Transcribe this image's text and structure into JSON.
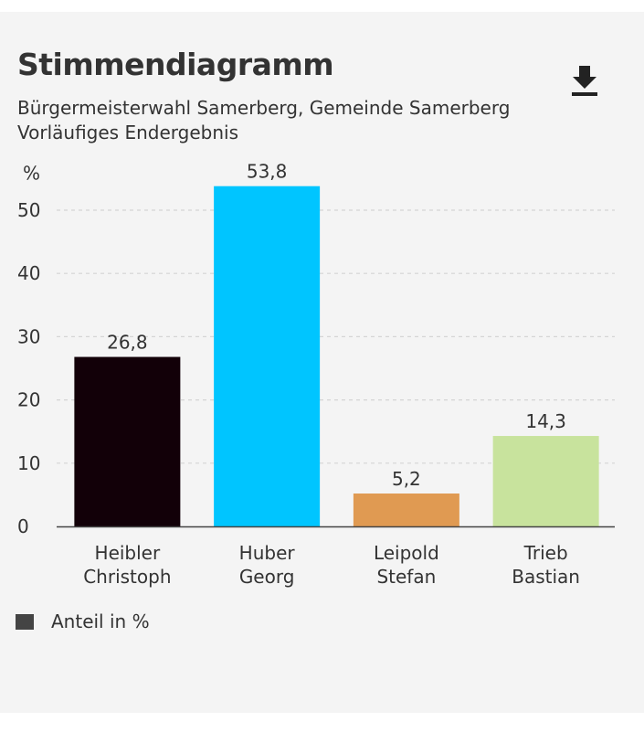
{
  "title": "Stimmendiagramm",
  "subtitle_lines": [
    "Bürgermeisterwahl Samerberg, Gemeinde Samerberg",
    "Vorläufiges Endergebnis"
  ],
  "download_icon": "download-icon",
  "chart_data": {
    "type": "bar",
    "y_unit_label": "%",
    "categories": [
      [
        "Heibler",
        "Christoph"
      ],
      [
        "Huber",
        "Georg"
      ],
      [
        "Leipold",
        "Stefan"
      ],
      [
        "Trieb",
        "Bastian"
      ]
    ],
    "values": [
      26.8,
      53.8,
      5.2,
      14.3
    ],
    "value_labels": [
      "26,8",
      "53,8",
      "5,2",
      "14,3"
    ],
    "colors": [
      "#120008",
      "#00c5ff",
      "#e09a52",
      "#c8e39d"
    ],
    "yticks": [
      0,
      10,
      20,
      30,
      40,
      50
    ],
    "ylim": [
      0,
      55
    ],
    "grid": true,
    "legend_placement": "bottom-left"
  },
  "legend": {
    "label": "Anteil in %",
    "color": "#444444"
  }
}
